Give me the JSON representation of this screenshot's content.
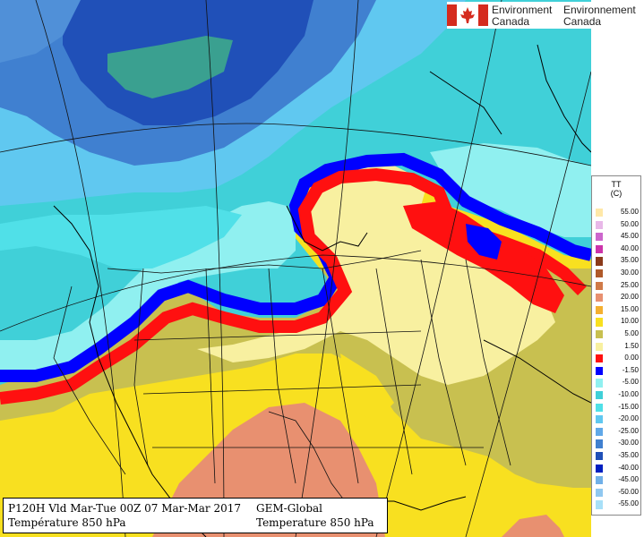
{
  "agency": {
    "name_en_line1": "Environment",
    "name_en_line2": "Canada",
    "name_fr_line1": "Environnement",
    "name_fr_line2": "Canada",
    "flag_red": "#d52b1e"
  },
  "legend": {
    "title_line1": "TT",
    "title_line2": "(C)",
    "entries": [
      {
        "label": "55.00",
        "color": "#ffe8a8"
      },
      {
        "label": "50.00",
        "color": "#e8b8e8"
      },
      {
        "label": "45.00",
        "color": "#cc66cc"
      },
      {
        "label": "40.00",
        "color": "#cc33aa"
      },
      {
        "label": "35.00",
        "color": "#8b3a1a"
      },
      {
        "label": "30.00",
        "color": "#b05a2a"
      },
      {
        "label": "25.00",
        "color": "#d07a48"
      },
      {
        "label": "20.00",
        "color": "#e89070"
      },
      {
        "label": "15.00",
        "color": "#f4b030"
      },
      {
        "label": "10.00",
        "color": "#f8e020"
      },
      {
        "label": "5.00",
        "color": "#c8c050"
      },
      {
        "label": "1.50",
        "color": "#f8f0a0"
      },
      {
        "label": "0.00",
        "color": "#ff1010"
      },
      {
        "label": "-1.50",
        "color": "#0000ff"
      },
      {
        "label": "-5.00",
        "color": "#90f0f0"
      },
      {
        "label": "-10.00",
        "color": "#40d0d8"
      },
      {
        "label": "-15.00",
        "color": "#50e0e8"
      },
      {
        "label": "-20.00",
        "color": "#60c8f0"
      },
      {
        "label": "-25.00",
        "color": "#60a8e8"
      },
      {
        "label": "-30.00",
        "color": "#4080d0"
      },
      {
        "label": "-35.00",
        "color": "#2050b8"
      },
      {
        "label": "-40.00",
        "color": "#0020c0"
      },
      {
        "label": "-45.00",
        "color": "#70b0e8"
      },
      {
        "label": "-50.00",
        "color": "#90c8f0"
      },
      {
        "label": "-55.00",
        "color": "#a8e0f8"
      }
    ]
  },
  "info": {
    "line1": "P120H Vld Mar-Tue 00Z 07 Mar-Mar 2017",
    "line2": "Température 850 hPa",
    "model": "GEM-Global",
    "line2_right": "Temperature 850 hPa"
  }
}
